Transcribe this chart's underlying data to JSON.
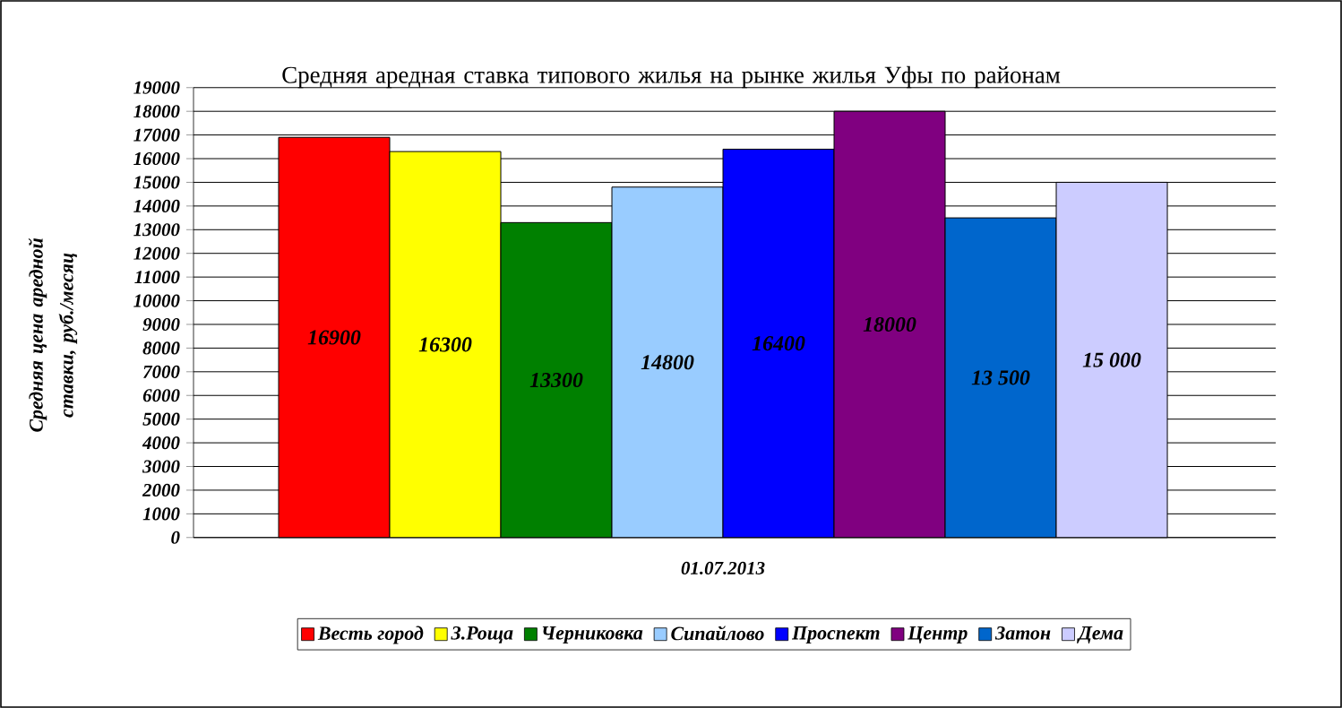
{
  "chart_data": {
    "type": "bar",
    "title": "Средняя аредная ставка типового жилья на рынке жилья Уфы по районам",
    "ylabel": "Средняя цена аредной ставки, руб./месяц",
    "categories": [
      "01.07.2013"
    ],
    "series": [
      {
        "name": "Весть город",
        "color": "#ff0000",
        "values": [
          16900
        ],
        "value_labels": [
          "16900"
        ]
      },
      {
        "name": "З.Роща",
        "color": "#ffff00",
        "values": [
          16300
        ],
        "value_labels": [
          "16300"
        ]
      },
      {
        "name": "Черниковка",
        "color": "#008000",
        "values": [
          13300
        ],
        "value_labels": [
          "13300"
        ]
      },
      {
        "name": "Сипайлово",
        "color": "#99ccff",
        "values": [
          14800
        ],
        "value_labels": [
          "14800"
        ]
      },
      {
        "name": "Проспект",
        "color": "#0000ff",
        "values": [
          16400
        ],
        "value_labels": [
          "16400"
        ]
      },
      {
        "name": "Центр",
        "color": "#800080",
        "values": [
          18000
        ],
        "value_labels": [
          "18000"
        ]
      },
      {
        "name": "Затон",
        "color": "#0066cc",
        "values": [
          13500
        ],
        "value_labels": [
          "13 500"
        ]
      },
      {
        "name": "Дема",
        "color": "#ccccff",
        "values": [
          15000
        ],
        "value_labels": [
          "15 000"
        ]
      }
    ],
    "ylim": [
      0,
      19000
    ],
    "yticks": [
      0,
      1000,
      2000,
      3000,
      4000,
      5000,
      6000,
      7000,
      8000,
      9000,
      10000,
      11000,
      12000,
      13000,
      14000,
      15000,
      16000,
      17000,
      18000,
      19000
    ],
    "grid": "y",
    "legend": "bottom"
  }
}
